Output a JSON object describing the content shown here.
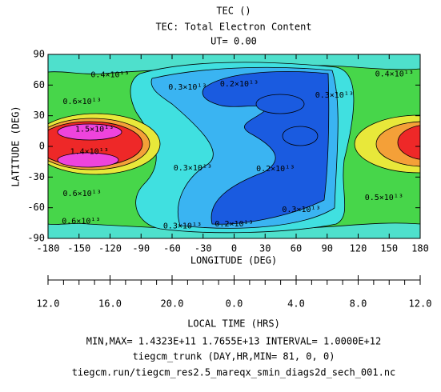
{
  "chart_data": {
    "type": "contour",
    "title": "TEC ()",
    "subtitle": "TEC: Total Electron Content",
    "ut_label": "UT= 0.00",
    "xlabel": "LONGITUDE (DEG)",
    "ylabel": "LATITUDE (DEG)",
    "xlim": [
      -180,
      180
    ],
    "ylim": [
      -90,
      90
    ],
    "xticks": [
      -180,
      -150,
      -120,
      -90,
      -60,
      -30,
      0,
      30,
      60,
      90,
      120,
      150,
      180
    ],
    "yticks": [
      -90,
      -60,
      -30,
      0,
      30,
      60,
      90
    ],
    "lt_label": "LOCAL TIME (HRS)",
    "lt_ticks": [
      {
        "value": -180,
        "label": "12.0"
      },
      {
        "value": -120,
        "label": "16.0"
      },
      {
        "value": -60,
        "label": "20.0"
      },
      {
        "value": 0,
        "label": "0.0"
      },
      {
        "value": 60,
        "label": "4.0"
      },
      {
        "value": 120,
        "label": "8.0"
      },
      {
        "value": 180,
        "label": "12.0"
      }
    ],
    "annotations": [
      {
        "text": "0.4×10¹³",
        "x": -120,
        "y": 70
      },
      {
        "text": "0.4×10¹³",
        "x": 155,
        "y": 71
      },
      {
        "text": "0.3×10¹³",
        "x": -45,
        "y": 58
      },
      {
        "text": "0.2×10¹³",
        "x": 5,
        "y": 61
      },
      {
        "text": "0.3×10¹³",
        "x": 97,
        "y": 50
      },
      {
        "text": "0.6×10¹³",
        "x": -147,
        "y": 44
      },
      {
        "text": "1.5×10¹³",
        "x": -135,
        "y": 17
      },
      {
        "text": "1.4×10¹³",
        "x": -140,
        "y": -5
      },
      {
        "text": "0.3×10¹³",
        "x": -40,
        "y": -21
      },
      {
        "text": "0.2×10¹³",
        "x": 40,
        "y": -22
      },
      {
        "text": "0.6×10¹³",
        "x": -147,
        "y": -46
      },
      {
        "text": "0.5×10¹³",
        "x": 145,
        "y": -50
      },
      {
        "text": "0.3×10¹³",
        "x": 65,
        "y": -62
      },
      {
        "text": "0.6×10¹³",
        "x": -148,
        "y": -73
      },
      {
        "text": "0.3×10¹³",
        "x": -50,
        "y": -78
      },
      {
        "text": "0.2×10¹³",
        "x": 0,
        "y": -76
      }
    ],
    "footer": [
      "MIN,MAX=  1.4323E+11  1.7655E+13 INTERVAL=  1.0000E+12",
      "tiegcm_trunk (DAY,HR,MIN= 81, 0, 0)",
      "tiegcm.run/tiegcm_res2.5_mareqx_smin_diags2d_sech_001.nc"
    ]
  }
}
